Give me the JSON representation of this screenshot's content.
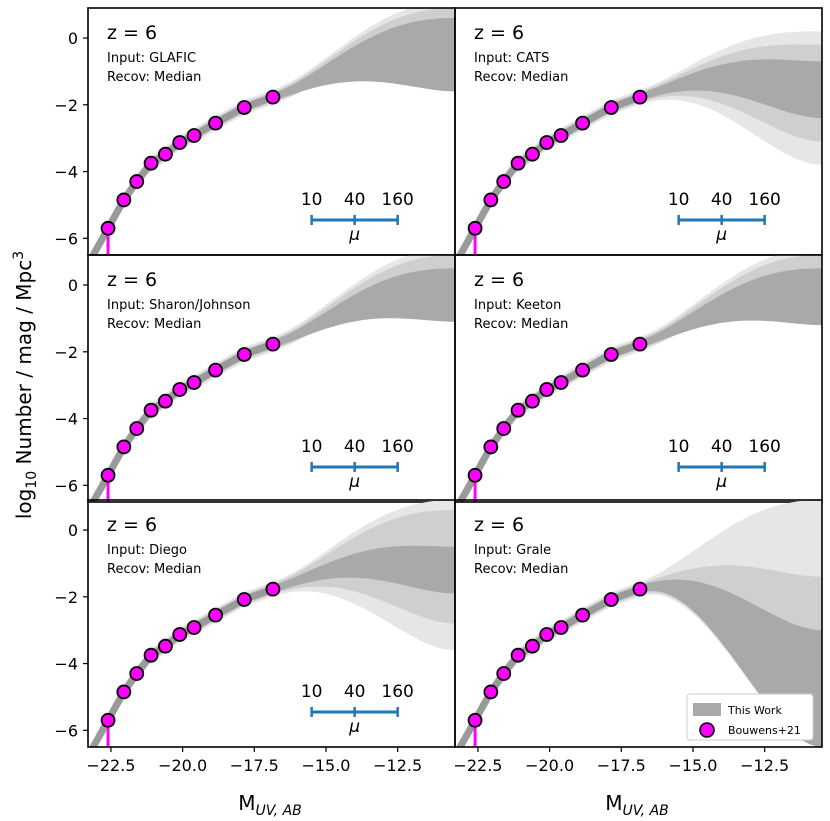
{
  "chart_data": {
    "type": "scatter",
    "layout": "3x2 grid of panels sharing axes",
    "xlabel": "M",
    "xlabel_sub": "UV, AB",
    "ylabel": "log",
    "ylabel_sub": "10",
    "ylabel_rest": " Number / mag / Mpc",
    "ylabel_sup": "3",
    "xlim": [
      -23.3,
      -10.5
    ],
    "ylim": [
      -6.5,
      0.9
    ],
    "x_ticks": [
      "-22.5",
      "-20.0",
      "-17.5",
      "-15.0",
      "-12.5"
    ],
    "x_tick_values": [
      -22.5,
      -20.0,
      -17.5,
      -15.0,
      -12.5
    ],
    "y_ticks": [
      "0",
      "-2",
      "-4",
      "-6"
    ],
    "y_tick_values": [
      0,
      -2,
      -4,
      -6
    ],
    "colors": {
      "points": "#ff00ff",
      "point_edge": "#000000",
      "band_outer": "#e6e6e6",
      "band_mid": "#cfcfcf",
      "band_inner": "#a9a9a9",
      "median_line": "#9a9a9a",
      "mu_bar": "#1f77b4",
      "lower_limit": "#ff00ff"
    },
    "bouwens21": {
      "name": "Bouwens+21",
      "x": [
        -22.6,
        -22.05,
        -21.6,
        -21.1,
        -20.6,
        -20.1,
        -19.6,
        -18.85,
        -17.85,
        -16.85
      ],
      "y": [
        -5.7,
        -4.85,
        -4.3,
        -3.75,
        -3.48,
        -3.13,
        -2.92,
        -2.55,
        -2.08,
        -1.77
      ]
    },
    "mu_scale": {
      "labels": [
        "10",
        "40",
        "160"
      ],
      "x": [
        -15.5,
        -14.0,
        -12.5
      ],
      "y": -5.45,
      "symbol": "μ"
    },
    "panels": [
      {
        "z_label": "z = 6",
        "input": "Input: GLAFIC",
        "recov": "Recov: Median",
        "show_mu": true,
        "band_end": [
          {
            "upper": 1.1,
            "lower": -0.1
          },
          {
            "upper": 0.9,
            "lower": -0.9
          },
          {
            "upper": 0.6,
            "lower": -1.6
          }
        ]
      },
      {
        "z_label": "z = 6",
        "input": "Input: CATS",
        "recov": "Recov: Median",
        "show_mu": true,
        "band_end": [
          {
            "upper": 0.2,
            "lower": -3.8
          },
          {
            "upper": -0.2,
            "lower": -3.1
          },
          {
            "upper": -0.7,
            "lower": -2.4
          }
        ]
      },
      {
        "z_label": "z = 6",
        "input": "Input: Sharon/Johnson",
        "recov": "Recov: Median",
        "show_mu": true,
        "band_end": [
          {
            "upper": 1.1,
            "lower": -0.1
          },
          {
            "upper": 0.9,
            "lower": -0.7
          },
          {
            "upper": 0.5,
            "lower": -1.1
          }
        ]
      },
      {
        "z_label": "z = 6",
        "input": "Input: Keeton",
        "recov": "Recov: Median",
        "show_mu": true,
        "band_end": [
          {
            "upper": 1.1,
            "lower": -0.2
          },
          {
            "upper": 0.9,
            "lower": -0.7
          },
          {
            "upper": 0.5,
            "lower": -1.2
          }
        ]
      },
      {
        "z_label": "z = 6",
        "input": "Input: Diego",
        "recov": "Recov: Median",
        "show_mu": true,
        "band_end": [
          {
            "upper": 0.9,
            "lower": -3.6
          },
          {
            "upper": 0.6,
            "lower": -2.8
          },
          {
            "upper": -0.5,
            "lower": -1.9
          }
        ]
      },
      {
        "z_label": "z = 6",
        "input": "Input: Grale",
        "recov": "Recov: Median",
        "show_mu": false,
        "band_end": [
          {
            "upper": 0.9,
            "lower": -6.5
          },
          {
            "upper": -1.4,
            "lower": -6.5
          },
          {
            "upper": -3.0,
            "lower": -6.5
          }
        ]
      }
    ],
    "legend": {
      "position": "lower-right",
      "entries": [
        "This Work",
        "Bouwens+21"
      ]
    }
  }
}
